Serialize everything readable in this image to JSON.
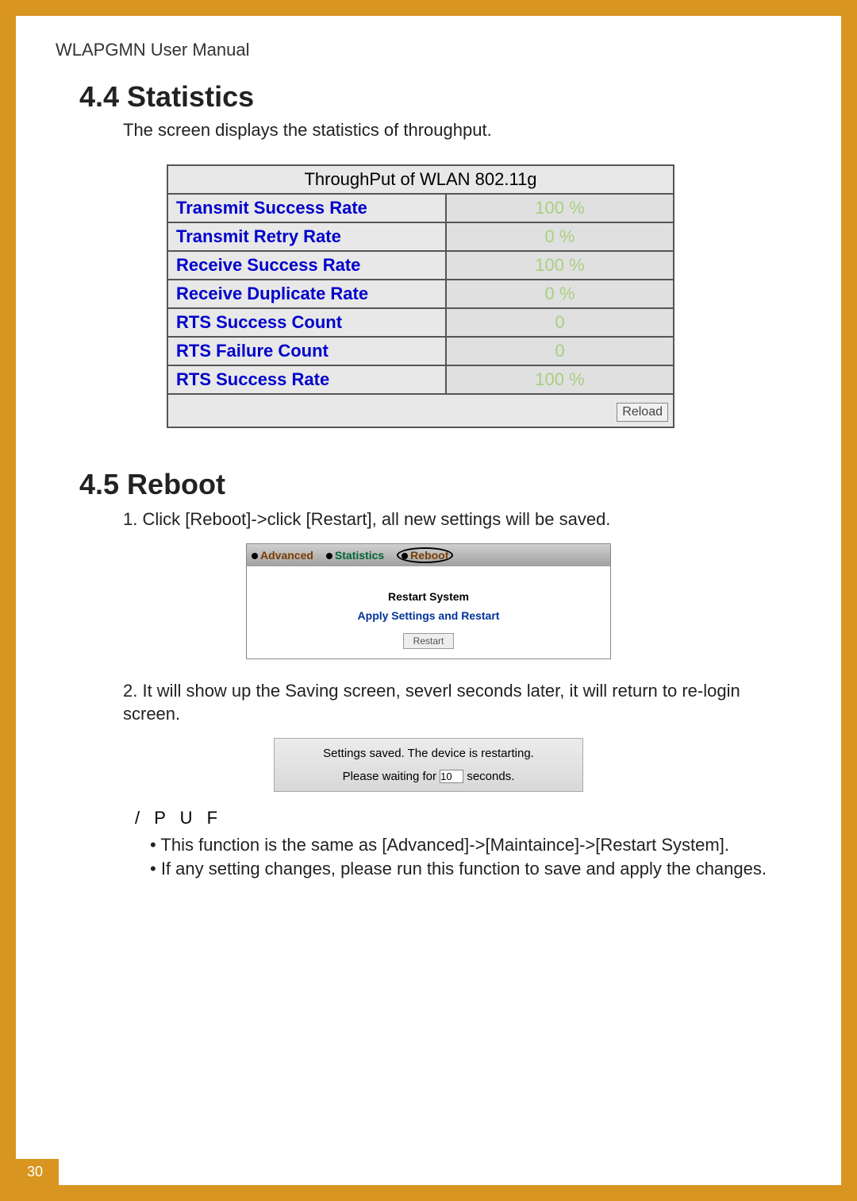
{
  "header": "WLAPGMN User Manual",
  "section44": {
    "heading": "4.4  Statistics",
    "intro": "The screen displays the statistics of throughput."
  },
  "stats": {
    "title": "ThroughPut of WLAN 802.11g",
    "rows": [
      {
        "label": "Transmit Success Rate",
        "value": "100 %"
      },
      {
        "label": "Transmit Retry Rate",
        "value": "0 %"
      },
      {
        "label": "Receive Success Rate",
        "value": "100 %"
      },
      {
        "label": "Receive Duplicate Rate",
        "value": "0 %"
      },
      {
        "label": "RTS Success Count",
        "value": "0"
      },
      {
        "label": "RTS Failure Count",
        "value": "0"
      },
      {
        "label": "RTS Success Rate",
        "value": "100 %"
      }
    ],
    "reload_label": "Reload",
    "colors": {
      "label_color": "#0000cc",
      "value_color": "#a8d080",
      "border_color": "#555555",
      "bg_color": "#e8e8e8"
    }
  },
  "section45": {
    "heading": "4.5  Reboot",
    "step1": "1. Click [Reboot]->click [Restart], all new settings will be saved.",
    "step2": "2. It will show up the Saving screen, severl seconds later, it will return to re-login screen."
  },
  "panel1": {
    "tabs": {
      "t1": "Advanced",
      "t2": "Statistics",
      "t3": "Reboot"
    },
    "line1": "Restart System",
    "line2": "Apply Settings and Restart",
    "restart_label": "Restart"
  },
  "panel2": {
    "msg1": "Settings saved. The device is restarting.",
    "msg2a": "Please waiting for",
    "msg2b": "seconds.",
    "countdown": "10"
  },
  "puf": "/ P U F",
  "bullets": {
    "b1": "• This function is the same as [Advanced]->[Maintaince]->[Restart System].",
    "b2": "• If any setting changes, please run this function to save and apply the changes."
  },
  "page_number": "30"
}
